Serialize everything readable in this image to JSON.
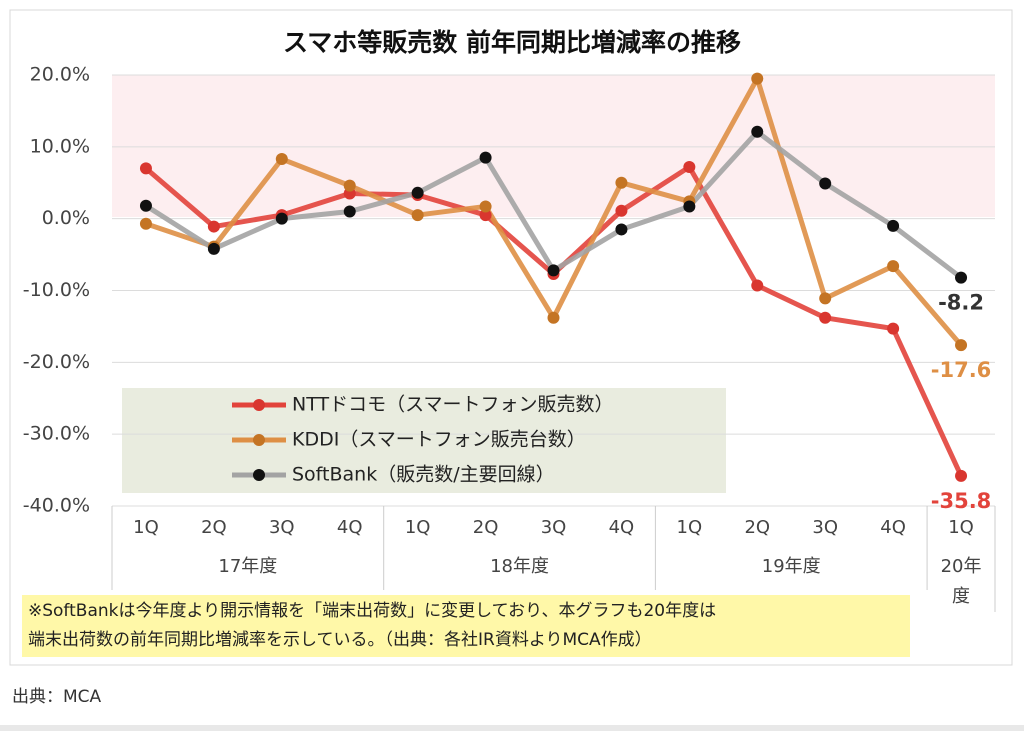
{
  "chart_data": {
    "type": "line",
    "title": "スマホ等販売数 前年同期比増減率の推移",
    "groups": [
      {
        "label": "17年度",
        "categories": [
          "1Q",
          "2Q",
          "3Q",
          "4Q"
        ]
      },
      {
        "label": "18年度",
        "categories": [
          "1Q",
          "2Q",
          "3Q",
          "4Q"
        ]
      },
      {
        "label": "19年度",
        "categories": [
          "1Q",
          "2Q",
          "3Q",
          "4Q"
        ]
      },
      {
        "label": "20年度",
        "categories": [
          "1Q"
        ]
      }
    ],
    "series": [
      {
        "name": "NTTドコモ（スマートフォン販売数）",
        "color": "#e2433b",
        "marker_color": "#d9362f",
        "values": [
          7.0,
          -1.1,
          0.5,
          3.5,
          3.3,
          0.5,
          -7.7,
          1.1,
          7.2,
          -9.3,
          -13.8,
          -15.3,
          -35.8
        ]
      },
      {
        "name": "KDDI（スマートフォン販売台数）",
        "color": "#de8f45",
        "marker_color": "#c47424",
        "values": [
          -0.7,
          -3.9,
          8.3,
          4.6,
          0.5,
          1.7,
          -13.8,
          5.0,
          2.4,
          19.5,
          -11.1,
          -6.6,
          -17.6
        ]
      },
      {
        "name": "SoftBank（販売数/主要回線）",
        "color": "#a3a3a3",
        "marker_color": "#111111",
        "values": [
          1.8,
          -4.2,
          0.0,
          1.0,
          3.6,
          8.5,
          -7.2,
          -1.5,
          1.7,
          12.1,
          4.9,
          -1.0,
          -8.2
        ]
      }
    ],
    "ylim": [
      -40,
      20
    ],
    "yticks": [
      {
        "value": -40,
        "label": "-40.0%"
      },
      {
        "value": -30,
        "label": "-30.0%"
      },
      {
        "value": -20,
        "label": "-20.0%"
      },
      {
        "value": -10,
        "label": "-10.0%"
      },
      {
        "value": 0,
        "label": "0.0%"
      },
      {
        "value": 10,
        "label": "10.0%"
      },
      {
        "value": 20,
        "label": "20.0%"
      }
    ],
    "grid": true,
    "note": [
      "※SoftBankは今年度より開示情報を「端末出荷数」に変更しており、本グラフも20年度は",
      "端末出荷数の前年同期比増減率を示している。（出典：各社IR資料よりMCA作成）"
    ],
    "source": "出典：MCA"
  }
}
